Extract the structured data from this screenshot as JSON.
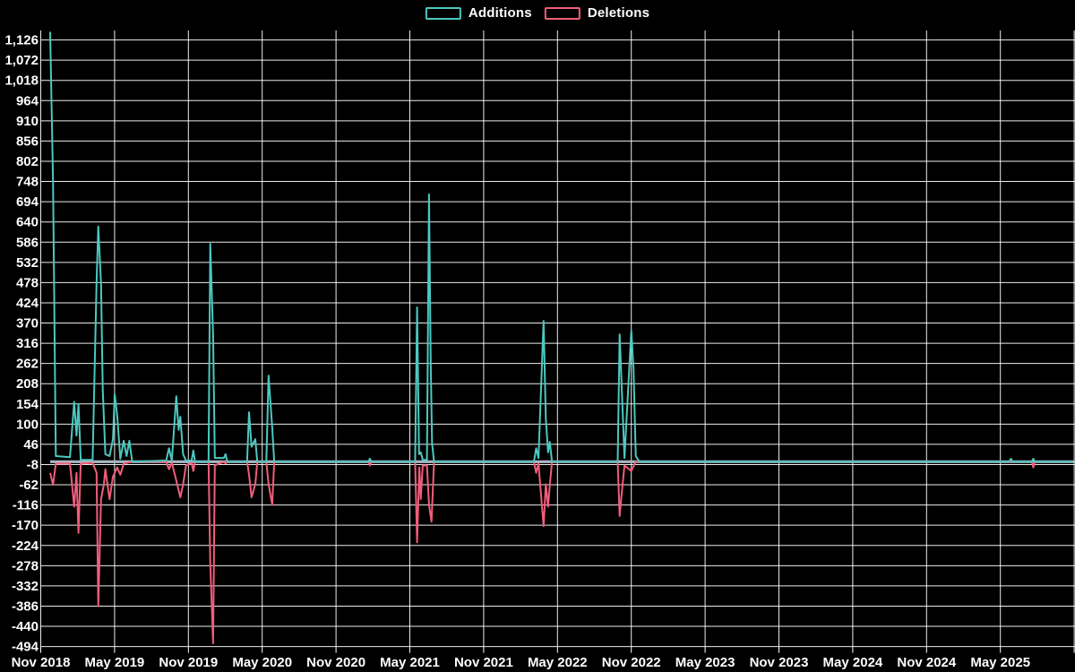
{
  "legend": {
    "items": [
      {
        "label": "Additions",
        "color": "#4cc8c0"
      },
      {
        "label": "Deletions",
        "color": "#f15d7a"
      }
    ]
  },
  "chart_data": {
    "type": "line",
    "title": "",
    "legend_position": "top",
    "grid": true,
    "background_color": "#000000",
    "grid_color": "#ffffff",
    "zero_line_color": "#a9b7c2",
    "x_axis": {
      "tick_labels": [
        "Nov 2018",
        "May 2019",
        "Nov 2019",
        "May 2020",
        "Nov 2020",
        "May 2021",
        "Nov 2021",
        "May 2022",
        "Nov 2022",
        "May 2023",
        "Nov 2023",
        "May 2024",
        "Nov 2024",
        "May 2025"
      ],
      "tick_interval": "6 months",
      "extra_unlabeled_gridline_at_right_edge": true
    },
    "y_axis": {
      "max": 1126,
      "min": -494,
      "tick_step": 54,
      "tick_labels": [
        "1,126",
        "1,072",
        "1,018",
        "964",
        "910",
        "856",
        "802",
        "748",
        "694",
        "640",
        "586",
        "532",
        "478",
        "424",
        "370",
        "316",
        "262",
        "208",
        "154",
        "100",
        "46",
        "-8",
        "-62",
        "-116",
        "-170",
        "-224",
        "-278",
        "-332",
        "-386",
        "-440",
        "-494"
      ]
    },
    "x_unit": "weeks since first data point (late Nov 2018); 6-month tick ≈ 26.09 weeks",
    "series": [
      {
        "name": "Additions",
        "color": "#4cc8c0",
        "points": [
          [
            0,
            1148
          ],
          [
            1,
            748
          ],
          [
            2,
            15
          ],
          [
            7,
            12
          ],
          [
            8.5,
            160
          ],
          [
            9.3,
            70
          ],
          [
            10,
            154
          ],
          [
            10.8,
            5
          ],
          [
            15,
            5
          ],
          [
            16.4,
            479
          ],
          [
            17,
            628
          ],
          [
            18,
            475
          ],
          [
            18.6,
            192
          ],
          [
            19.5,
            20
          ],
          [
            21,
            15
          ],
          [
            22.2,
            60
          ],
          [
            22.8,
            180
          ],
          [
            23.7,
            125
          ],
          [
            24.8,
            8
          ],
          [
            26,
            56
          ],
          [
            27,
            15
          ],
          [
            28,
            56
          ],
          [
            29,
            0
          ],
          [
            41,
            3
          ],
          [
            42,
            36
          ],
          [
            43,
            3
          ],
          [
            44.6,
            175
          ],
          [
            45.4,
            85
          ],
          [
            46,
            120
          ],
          [
            47,
            20
          ],
          [
            48,
            3
          ],
          [
            50,
            3
          ],
          [
            50.6,
            30
          ],
          [
            51.2,
            0
          ],
          [
            56,
            0
          ],
          [
            56.6,
            582
          ],
          [
            57.6,
            335
          ],
          [
            58.2,
            10
          ],
          [
            61.4,
            10
          ],
          [
            62,
            20
          ],
          [
            62.6,
            0
          ],
          [
            69.6,
            0
          ],
          [
            70.3,
            132
          ],
          [
            71.2,
            40
          ],
          [
            72.5,
            60
          ],
          [
            73.2,
            0
          ],
          [
            76.4,
            0
          ],
          [
            77.2,
            230
          ],
          [
            78.5,
            90
          ],
          [
            79.2,
            0
          ],
          [
            112.4,
            0
          ],
          [
            113,
            8
          ],
          [
            113.6,
            0
          ],
          [
            129,
            0
          ],
          [
            129.7,
            412
          ],
          [
            130.4,
            20
          ],
          [
            131,
            25
          ],
          [
            131.7,
            5
          ],
          [
            133.2,
            5
          ],
          [
            133.9,
            714
          ],
          [
            134.5,
            264
          ],
          [
            135,
            50
          ],
          [
            135.7,
            0
          ],
          [
            171,
            0
          ],
          [
            171.8,
            36
          ],
          [
            172.6,
            10
          ],
          [
            174.4,
            376
          ],
          [
            175.2,
            115
          ],
          [
            176,
            25
          ],
          [
            176.6,
            53
          ],
          [
            177.4,
            0
          ],
          [
            200.6,
            0
          ],
          [
            201.3,
            340
          ],
          [
            202,
            205
          ],
          [
            203,
            10
          ],
          [
            205.4,
            350
          ],
          [
            206.2,
            247
          ],
          [
            207,
            15
          ],
          [
            208.3,
            0
          ],
          [
            339,
            0
          ],
          [
            339.6,
            8
          ],
          [
            340.2,
            0
          ],
          [
            347,
            0
          ],
          [
            347.5,
            8
          ],
          [
            348.1,
            0
          ],
          [
            361.5,
            0
          ]
        ]
      },
      {
        "name": "Deletions",
        "color": "#f15d7a",
        "points": [
          [
            0,
            -30
          ],
          [
            1,
            -62
          ],
          [
            2,
            -5
          ],
          [
            7,
            -5
          ],
          [
            8.5,
            -120
          ],
          [
            9.3,
            -30
          ],
          [
            10,
            -190
          ],
          [
            10.8,
            -5
          ],
          [
            15,
            -3
          ],
          [
            16.4,
            -30
          ],
          [
            17,
            -386
          ],
          [
            18,
            -100
          ],
          [
            19,
            -60
          ],
          [
            19.5,
            -20
          ],
          [
            21,
            -100
          ],
          [
            22.2,
            -40
          ],
          [
            22.8,
            -30
          ],
          [
            23.7,
            -15
          ],
          [
            24.8,
            -35
          ],
          [
            26,
            -5
          ],
          [
            29,
            0
          ],
          [
            41,
            0
          ],
          [
            42,
            -20
          ],
          [
            43,
            -3
          ],
          [
            44.6,
            -50
          ],
          [
            46,
            -95
          ],
          [
            47,
            -60
          ],
          [
            48,
            -10
          ],
          [
            50,
            -3
          ],
          [
            50.6,
            -25
          ],
          [
            51.2,
            0
          ],
          [
            56,
            0
          ],
          [
            56.6,
            -270
          ],
          [
            57.6,
            -485
          ],
          [
            58.2,
            -10
          ],
          [
            61.4,
            0
          ],
          [
            62,
            -5
          ],
          [
            62.6,
            0
          ],
          [
            69.6,
            0
          ],
          [
            70.3,
            -35
          ],
          [
            71.2,
            -95
          ],
          [
            72.5,
            -60
          ],
          [
            73.2,
            0
          ],
          [
            76.4,
            0
          ],
          [
            77.2,
            -60
          ],
          [
            78.5,
            -115
          ],
          [
            79.2,
            0
          ],
          [
            112.4,
            0
          ],
          [
            113,
            -10
          ],
          [
            113.6,
            0
          ],
          [
            129,
            0
          ],
          [
            129.7,
            -215
          ],
          [
            130.5,
            -15
          ],
          [
            131,
            -100
          ],
          [
            131.7,
            -10
          ],
          [
            133.2,
            -10
          ],
          [
            133.9,
            -115
          ],
          [
            134.8,
            -160
          ],
          [
            135.7,
            0
          ],
          [
            171,
            0
          ],
          [
            171.8,
            -30
          ],
          [
            172.6,
            -5
          ],
          [
            174.4,
            -172
          ],
          [
            175.2,
            -60
          ],
          [
            176,
            -120
          ],
          [
            176.6,
            -64
          ],
          [
            177.4,
            0
          ],
          [
            200.6,
            0
          ],
          [
            201.3,
            -145
          ],
          [
            202,
            -87
          ],
          [
            203,
            -10
          ],
          [
            205.4,
            -25
          ],
          [
            207,
            0
          ],
          [
            339,
            0
          ],
          [
            347,
            0
          ],
          [
            347.5,
            -15
          ],
          [
            348.1,
            0
          ],
          [
            361.5,
            0
          ]
        ]
      }
    ]
  }
}
